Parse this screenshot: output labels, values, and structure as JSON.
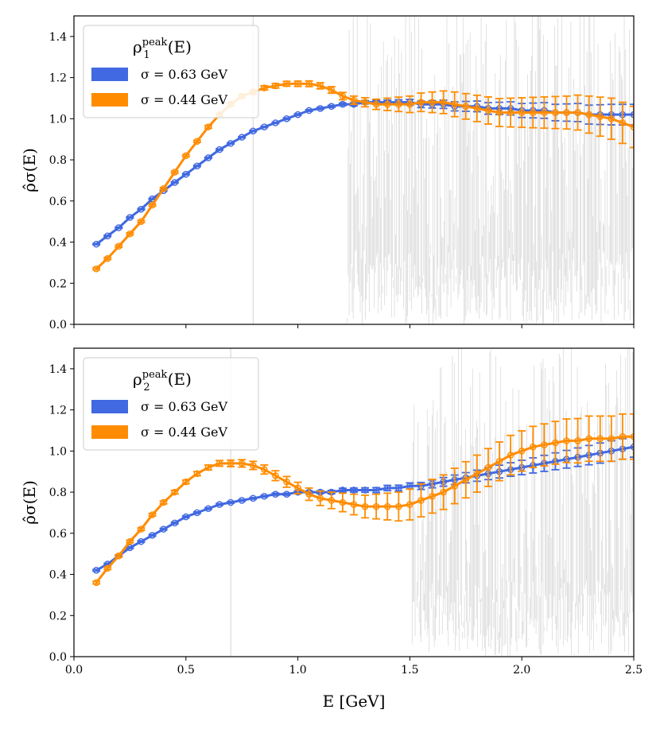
{
  "chart_data": [
    {
      "type": "line",
      "title": "",
      "xlabel": "",
      "ylabel": "ρ̂σ(E)",
      "xlim": [
        0.0,
        2.5
      ],
      "ylim": [
        0.0,
        1.5
      ],
      "x_ticks": [
        "",
        "",
        "",
        "",
        "",
        ""
      ],
      "y_ticks": [
        "0.0",
        "0.2",
        "0.4",
        "0.6",
        "0.8",
        "1.0",
        "1.2",
        "1.4"
      ],
      "legend": {
        "position": "top-left",
        "title_symbol": "ρ",
        "title_superscript": "peak",
        "title_subscript": "1",
        "title_suffix": "(E)"
      },
      "series": [
        {
          "name": "σ = 0.63 GeV",
          "color": "#4169e1",
          "x": [
            0.1,
            0.15,
            0.2,
            0.25,
            0.3,
            0.35,
            0.4,
            0.45,
            0.5,
            0.55,
            0.6,
            0.65,
            0.7,
            0.75,
            0.8,
            0.85,
            0.9,
            0.95,
            1.0,
            1.05,
            1.1,
            1.15,
            1.2,
            1.25,
            1.3,
            1.35,
            1.4,
            1.45,
            1.5,
            1.55,
            1.6,
            1.65,
            1.7,
            1.75,
            1.8,
            1.85,
            1.9,
            1.95,
            2.0,
            2.05,
            2.1,
            2.15,
            2.2,
            2.25,
            2.3,
            2.35,
            2.4,
            2.45,
            2.5
          ],
          "y": [
            0.39,
            0.43,
            0.47,
            0.52,
            0.56,
            0.61,
            0.65,
            0.69,
            0.73,
            0.77,
            0.81,
            0.85,
            0.88,
            0.91,
            0.94,
            0.96,
            0.98,
            1.0,
            1.02,
            1.04,
            1.05,
            1.06,
            1.07,
            1.07,
            1.08,
            1.08,
            1.08,
            1.08,
            1.08,
            1.07,
            1.07,
            1.07,
            1.06,
            1.06,
            1.06,
            1.05,
            1.05,
            1.05,
            1.04,
            1.04,
            1.04,
            1.03,
            1.03,
            1.03,
            1.02,
            1.02,
            1.02,
            1.02,
            1.02
          ],
          "err": [
            0.003,
            0.003,
            0.003,
            0.003,
            0.003,
            0.003,
            0.003,
            0.003,
            0.003,
            0.003,
            0.003,
            0.003,
            0.003,
            0.003,
            0.003,
            0.003,
            0.003,
            0.004,
            0.004,
            0.004,
            0.005,
            0.005,
            0.006,
            0.007,
            0.008,
            0.009,
            0.01,
            0.012,
            0.014,
            0.016,
            0.018,
            0.02,
            0.022,
            0.024,
            0.026,
            0.028,
            0.03,
            0.032,
            0.034,
            0.036,
            0.038,
            0.04,
            0.042,
            0.044,
            0.046,
            0.048,
            0.05,
            0.05,
            0.05
          ]
        },
        {
          "name": "σ = 0.44 GeV",
          "color": "#ff8c00",
          "x": [
            0.1,
            0.15,
            0.2,
            0.25,
            0.3,
            0.35,
            0.4,
            0.45,
            0.5,
            0.55,
            0.6,
            0.65,
            0.7,
            0.75,
            0.8,
            0.85,
            0.9,
            0.95,
            1.0,
            1.05,
            1.1,
            1.15,
            1.2,
            1.25,
            1.3,
            1.35,
            1.4,
            1.45,
            1.5,
            1.55,
            1.6,
            1.65,
            1.7,
            1.75,
            1.8,
            1.85,
            1.9,
            1.95,
            2.0,
            2.05,
            2.1,
            2.15,
            2.2,
            2.25,
            2.3,
            2.35,
            2.4,
            2.45,
            2.5
          ],
          "y": [
            0.27,
            0.32,
            0.38,
            0.44,
            0.5,
            0.58,
            0.66,
            0.74,
            0.82,
            0.89,
            0.96,
            1.02,
            1.07,
            1.11,
            1.13,
            1.15,
            1.16,
            1.17,
            1.17,
            1.17,
            1.16,
            1.14,
            1.11,
            1.09,
            1.08,
            1.07,
            1.07,
            1.07,
            1.07,
            1.08,
            1.08,
            1.08,
            1.07,
            1.06,
            1.05,
            1.04,
            1.03,
            1.03,
            1.03,
            1.03,
            1.03,
            1.03,
            1.03,
            1.03,
            1.02,
            1.01,
            1.0,
            0.98,
            0.96
          ],
          "err": [
            0.005,
            0.005,
            0.005,
            0.005,
            0.005,
            0.005,
            0.005,
            0.005,
            0.005,
            0.005,
            0.006,
            0.006,
            0.007,
            0.008,
            0.009,
            0.01,
            0.011,
            0.012,
            0.013,
            0.014,
            0.015,
            0.016,
            0.018,
            0.02,
            0.022,
            0.025,
            0.03,
            0.035,
            0.04,
            0.045,
            0.05,
            0.055,
            0.06,
            0.062,
            0.064,
            0.066,
            0.068,
            0.07,
            0.072,
            0.074,
            0.076,
            0.078,
            0.08,
            0.085,
            0.09,
            0.095,
            0.1,
            0.1,
            0.1
          ]
        }
      ],
      "background_noise": {
        "color": "#c8c8c8",
        "start_x": 1.22,
        "single_line_x": 0.8
      }
    },
    {
      "type": "line",
      "title": "",
      "xlabel": "E [GeV]",
      "ylabel": "ρ̂σ(E)",
      "xlim": [
        0.0,
        2.5
      ],
      "ylim": [
        0.0,
        1.5
      ],
      "x_ticks": [
        "0.0",
        "0.5",
        "1.0",
        "1.5",
        "2.0",
        "2.5"
      ],
      "y_ticks": [
        "0.0",
        "0.2",
        "0.4",
        "0.6",
        "0.8",
        "1.0",
        "1.2",
        "1.4"
      ],
      "legend": {
        "position": "top-left",
        "title_symbol": "ρ",
        "title_superscript": "peak",
        "title_subscript": "2",
        "title_suffix": "(E)"
      },
      "series": [
        {
          "name": "σ = 0.63 GeV",
          "color": "#4169e1",
          "x": [
            0.1,
            0.15,
            0.2,
            0.25,
            0.3,
            0.35,
            0.4,
            0.45,
            0.5,
            0.55,
            0.6,
            0.65,
            0.7,
            0.75,
            0.8,
            0.85,
            0.9,
            0.95,
            1.0,
            1.05,
            1.1,
            1.15,
            1.2,
            1.25,
            1.3,
            1.35,
            1.4,
            1.45,
            1.5,
            1.55,
            1.6,
            1.65,
            1.7,
            1.75,
            1.8,
            1.85,
            1.9,
            1.95,
            2.0,
            2.05,
            2.1,
            2.15,
            2.2,
            2.25,
            2.3,
            2.35,
            2.4,
            2.45,
            2.5
          ],
          "y": [
            0.42,
            0.45,
            0.49,
            0.53,
            0.56,
            0.59,
            0.62,
            0.65,
            0.68,
            0.7,
            0.72,
            0.74,
            0.75,
            0.76,
            0.77,
            0.78,
            0.79,
            0.79,
            0.8,
            0.8,
            0.8,
            0.8,
            0.81,
            0.81,
            0.81,
            0.81,
            0.82,
            0.82,
            0.83,
            0.83,
            0.84,
            0.85,
            0.86,
            0.87,
            0.88,
            0.89,
            0.9,
            0.91,
            0.92,
            0.93,
            0.94,
            0.95,
            0.96,
            0.97,
            0.98,
            0.99,
            1.0,
            1.01,
            1.02
          ],
          "err": [
            0.004,
            0.004,
            0.004,
            0.004,
            0.004,
            0.004,
            0.004,
            0.004,
            0.004,
            0.004,
            0.004,
            0.004,
            0.004,
            0.004,
            0.004,
            0.004,
            0.005,
            0.005,
            0.006,
            0.006,
            0.007,
            0.008,
            0.009,
            0.01,
            0.011,
            0.012,
            0.013,
            0.014,
            0.015,
            0.017,
            0.019,
            0.021,
            0.023,
            0.025,
            0.027,
            0.029,
            0.031,
            0.033,
            0.035,
            0.037,
            0.039,
            0.041,
            0.043,
            0.045,
            0.047,
            0.049,
            0.05,
            0.05,
            0.05
          ]
        },
        {
          "name": "σ = 0.44 GeV",
          "color": "#ff8c00",
          "x": [
            0.1,
            0.15,
            0.2,
            0.25,
            0.3,
            0.35,
            0.4,
            0.45,
            0.5,
            0.55,
            0.6,
            0.65,
            0.7,
            0.75,
            0.8,
            0.85,
            0.9,
            0.95,
            1.0,
            1.05,
            1.1,
            1.15,
            1.2,
            1.25,
            1.3,
            1.35,
            1.4,
            1.45,
            1.5,
            1.55,
            1.6,
            1.65,
            1.7,
            1.75,
            1.8,
            1.85,
            1.9,
            1.95,
            2.0,
            2.05,
            2.1,
            2.15,
            2.2,
            2.25,
            2.3,
            2.35,
            2.4,
            2.45,
            2.5
          ],
          "y": [
            0.36,
            0.43,
            0.49,
            0.56,
            0.62,
            0.69,
            0.75,
            0.8,
            0.85,
            0.89,
            0.92,
            0.94,
            0.94,
            0.94,
            0.93,
            0.91,
            0.88,
            0.85,
            0.82,
            0.79,
            0.77,
            0.76,
            0.75,
            0.74,
            0.73,
            0.73,
            0.73,
            0.73,
            0.74,
            0.76,
            0.78,
            0.8,
            0.83,
            0.86,
            0.89,
            0.92,
            0.95,
            0.98,
            1.0,
            1.02,
            1.03,
            1.04,
            1.05,
            1.05,
            1.06,
            1.06,
            1.06,
            1.07,
            1.07
          ],
          "err": [
            0.006,
            0.006,
            0.006,
            0.006,
            0.006,
            0.006,
            0.007,
            0.008,
            0.009,
            0.01,
            0.012,
            0.014,
            0.016,
            0.018,
            0.02,
            0.022,
            0.024,
            0.026,
            0.028,
            0.03,
            0.035,
            0.04,
            0.045,
            0.05,
            0.055,
            0.06,
            0.065,
            0.07,
            0.075,
            0.08,
            0.082,
            0.084,
            0.086,
            0.088,
            0.09,
            0.092,
            0.094,
            0.096,
            0.098,
            0.1,
            0.102,
            0.104,
            0.106,
            0.108,
            0.11,
            0.11,
            0.11,
            0.11,
            0.11
          ]
        }
      ],
      "background_noise": {
        "color": "#c8c8c8",
        "start_x": 1.51,
        "single_line_x": 0.7
      }
    }
  ]
}
